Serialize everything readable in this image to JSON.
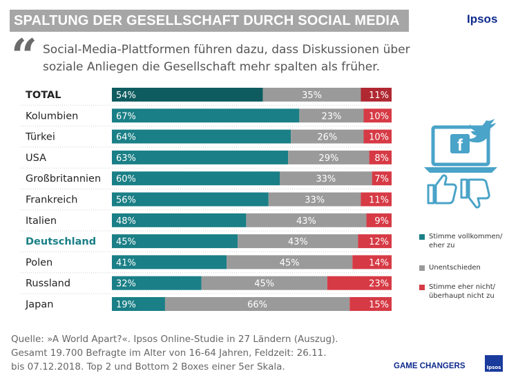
{
  "header": {
    "title": "SPALTUNG DER GESELLSCHAFT DURCH SOCIAL MEDIA",
    "brand": "Ipsos"
  },
  "question": {
    "quote_icon": "quote-icon",
    "text": "Social-Media-Plattformen führen dazu, dass Diskussionen über soziale Anliegen die Gesellschaft mehr spalten als früher."
  },
  "chart_data": {
    "type": "bar",
    "stacked": true,
    "orientation": "horizontal",
    "unit": "%",
    "categories": [
      "TOTAL",
      "Kolumbien",
      "Türkei",
      "USA",
      "Großbritannien",
      "Frankreich",
      "Italien",
      "Deutschland",
      "Polen",
      "Russland",
      "Japan"
    ],
    "highlighted_categories": [
      "TOTAL",
      "Deutschland"
    ],
    "series": [
      {
        "name": "Stimme vollkommen/ eher zu",
        "color": "#1a7f86",
        "values": [
          54,
          67,
          64,
          63,
          60,
          56,
          48,
          45,
          41,
          32,
          19
        ]
      },
      {
        "name": "Unentschieden",
        "color": "#9a9a9a",
        "values": [
          35,
          23,
          26,
          29,
          33,
          33,
          43,
          43,
          45,
          45,
          66
        ]
      },
      {
        "name": "Stimme eher nicht/ überhaupt nicht zu",
        "color": "#d63a45",
        "values": [
          11,
          10,
          10,
          8,
          7,
          11,
          9,
          12,
          14,
          23,
          15
        ]
      }
    ],
    "value_labels": [
      [
        "54%",
        "35%",
        "11%"
      ],
      [
        "67%",
        "23%",
        "10%"
      ],
      [
        "64%",
        "26%",
        "10%"
      ],
      [
        "63%",
        "29%",
        "8%"
      ],
      [
        "60%",
        "33%",
        "7%"
      ],
      [
        "56%",
        "33%",
        "11%"
      ],
      [
        "48%",
        "43%",
        "9%"
      ],
      [
        "45%",
        "43%",
        "12%"
      ],
      [
        "41%",
        "45%",
        "14%"
      ],
      [
        "32%",
        "45%",
        "23%"
      ],
      [
        "19%",
        "66%",
        "15%"
      ]
    ],
    "legend_position": "right",
    "grid": false
  },
  "legend": {
    "items": [
      {
        "label": "Stimme vollkommen/ eher zu",
        "color": "#1a7f86"
      },
      {
        "label": "Unentschieden",
        "color": "#9a9a9a"
      },
      {
        "label": "Stimme eher nicht/ überhaupt nicht zu",
        "color": "#d63a45"
      }
    ]
  },
  "illustration": {
    "icons": [
      "laptop-icon",
      "facebook-icon",
      "twitter-bird-icon",
      "thumbs-up-icon",
      "thumbs-down-icon"
    ],
    "facebook_glyph": "f",
    "color": "#4aa3c8"
  },
  "source": {
    "line1": "Quelle: »A World Apart?«. Ipsos Online-Studie in 27 Ländern (Auszug).",
    "line2": "Gesamt 19.700 Befragte im Alter von 16-64 Jahren, Feldzeit: 26.11.",
    "line3": "bis 07.12.2018. Top 2 und Bottom 2 Boxes einer 5er Skala."
  },
  "footer": {
    "tag": "GAME CHANGERS",
    "logo_text": "Ipsos"
  }
}
